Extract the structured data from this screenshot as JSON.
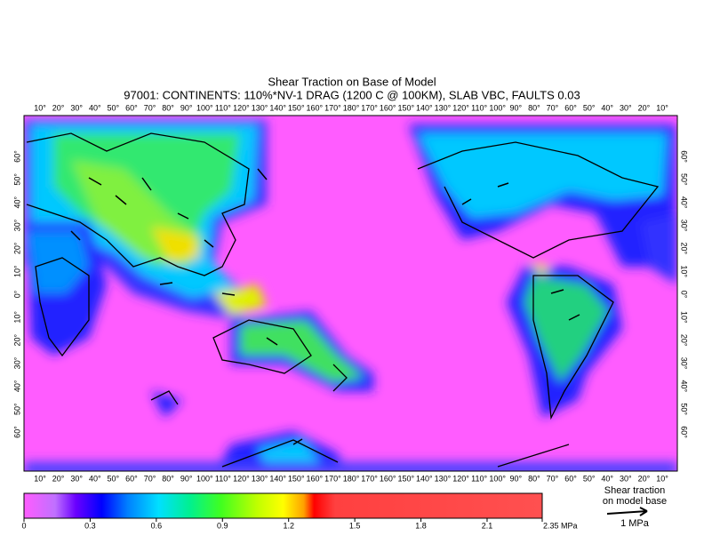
{
  "title": "Shear Traction on Base of Model",
  "subtitle": "97001: CONTINENTS: 110%*NV-1 DRAG (1200 C @ 100KM), SLAB VBC, FAULTS 0.03",
  "longitude_labels": [
    "10°",
    "20°",
    "30°",
    "40°",
    "50°",
    "60°",
    "70°",
    "80°",
    "90°",
    "100°",
    "110°",
    "120°",
    "130°",
    "140°",
    "150°",
    "160°",
    "170°",
    "180°",
    "170°",
    "160°",
    "150°",
    "140°",
    "130°",
    "120°",
    "110°",
    "100°",
    "90°",
    "80°",
    "70°",
    "60°",
    "50°",
    "40°",
    "30°",
    "20°",
    "10°"
  ],
  "latitude_labels": [
    "60°",
    "50°",
    "40°",
    "30°",
    "20°",
    "10°",
    "0°",
    "10°",
    "20°",
    "30°",
    "40°",
    "50°",
    "60°"
  ],
  "colorbar": {
    "range": [
      0,
      2.35
    ],
    "ticks": [
      0,
      0.3,
      0.6,
      0.9,
      1.2,
      1.5,
      1.8,
      2.1,
      {
        "value": 2.35,
        "label": "2.35 MPa"
      }
    ]
  },
  "legend": {
    "title": [
      "Shear traction",
      "on model base"
    ],
    "scale_label": "1 MPa"
  }
}
